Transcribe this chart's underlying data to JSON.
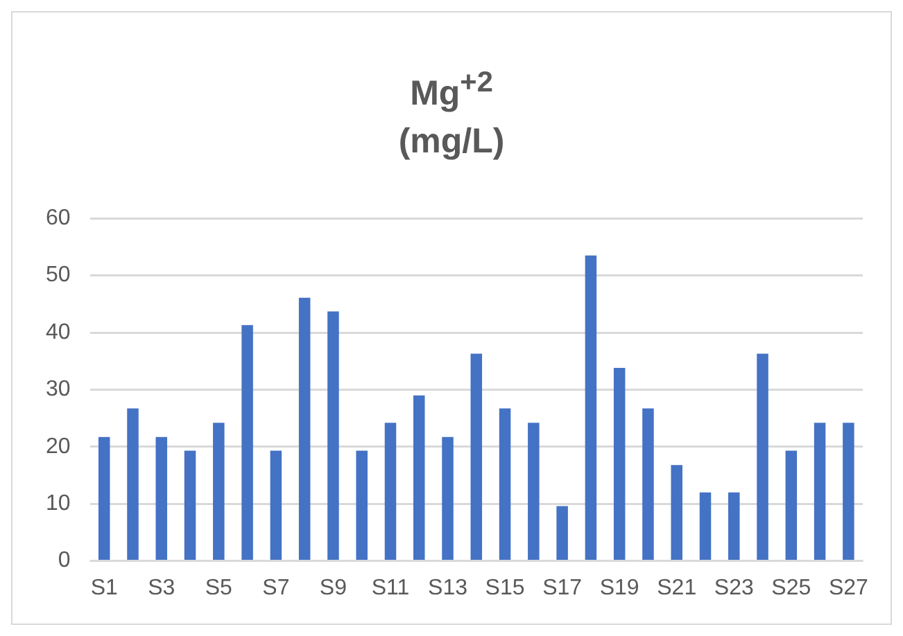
{
  "chart_data": {
    "type": "bar",
    "title": "Mg$^{+2}$\n(mg/L)",
    "categories": [
      "S1",
      null,
      "S3",
      null,
      "S5",
      null,
      "S7",
      null,
      "S9",
      null,
      "S11",
      null,
      "S13",
      null,
      "S15",
      null,
      "S17",
      null,
      "S19",
      null,
      "S21",
      null,
      "S23",
      null,
      "S25",
      null,
      "S27"
    ],
    "values": [
      21.7,
      26.7,
      21.7,
      19.3,
      24.2,
      41.3,
      19.3,
      46.1,
      43.7,
      19.3,
      24.2,
      29.0,
      21.7,
      36.3,
      26.7,
      24.2,
      9.6,
      53.5,
      33.8,
      26.7,
      16.8,
      12.0,
      12.0,
      36.3,
      19.3,
      24.2,
      24.2
    ],
    "color": "#4472c4",
    "ylim": [
      0,
      60
    ],
    "yticks": [
      0,
      10,
      20,
      30,
      40,
      50,
      60
    ],
    "grid": "y"
  }
}
